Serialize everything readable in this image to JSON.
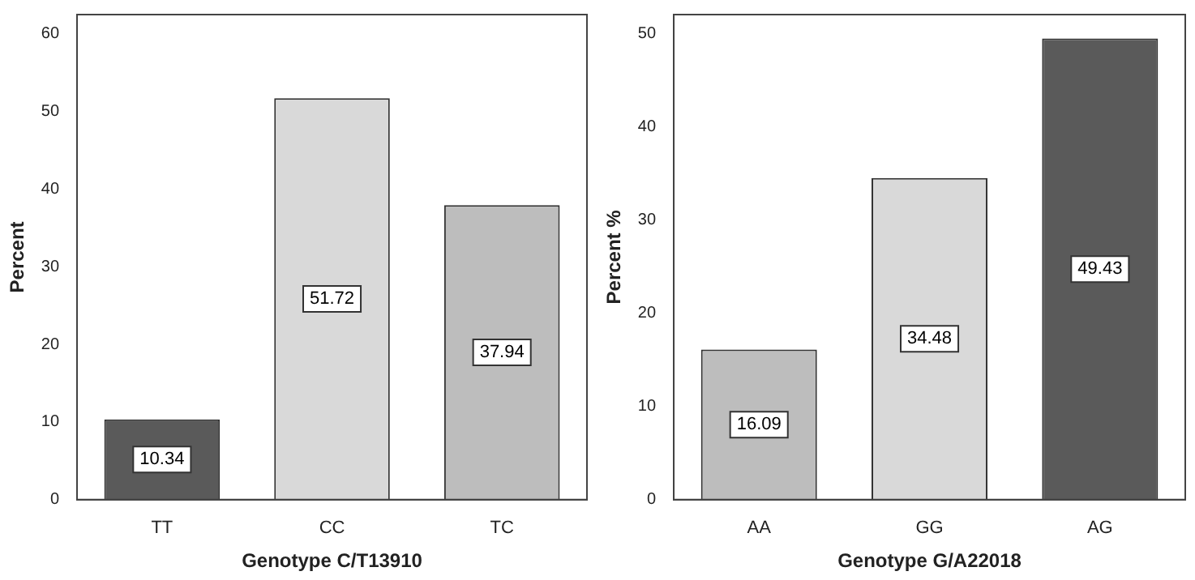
{
  "chart_data": [
    {
      "type": "bar",
      "xlabel": "Genotype C/T13910",
      "ylabel": "Percent",
      "categories": [
        "TT",
        "CC",
        "TC"
      ],
      "values": [
        10.34,
        51.72,
        37.94
      ],
      "colors": [
        "#5a5a5a",
        "#d9d9d9",
        "#bdbdbd"
      ],
      "ylim": [
        0,
        62.5
      ],
      "yticks": [
        0,
        10,
        20,
        30,
        40,
        50,
        60
      ],
      "grid": false,
      "legend": false,
      "data_labels": true
    },
    {
      "type": "bar",
      "xlabel": "Genotype G/A22018",
      "ylabel": "Percent %",
      "categories": [
        "AA",
        "GG",
        "AG"
      ],
      "values": [
        16.09,
        34.48,
        49.43
      ],
      "colors": [
        "#bdbdbd",
        "#d9d9d9",
        "#5a5a5a"
      ],
      "ylim": [
        0,
        52
      ],
      "yticks": [
        0,
        10,
        20,
        30,
        40,
        50
      ],
      "grid": false,
      "legend": false,
      "data_labels": true
    }
  ]
}
